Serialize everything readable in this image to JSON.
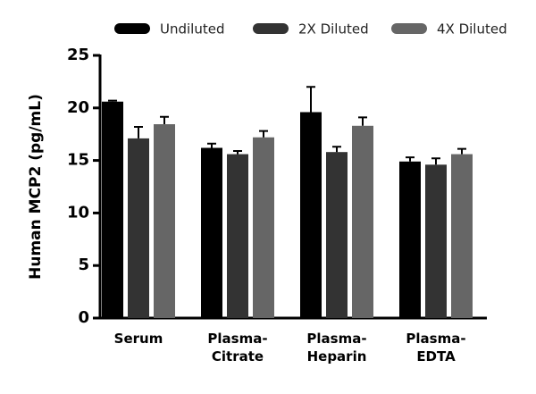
{
  "chart_data": {
    "type": "bar",
    "y_label": "Human MCP2 (pg/mL)",
    "categories": [
      "Serum",
      "Plasma-Citrate",
      "Plasma-Heparin",
      "Plasma-EDTA"
    ],
    "series": [
      {
        "name": "Undiluted",
        "color": "#000000",
        "values": [
          20.6,
          16.2,
          19.6,
          14.9
        ],
        "errors": [
          0.1,
          0.4,
          2.4,
          0.4
        ]
      },
      {
        "name": "2X Diluted",
        "color": "#333333",
        "values": [
          17.1,
          15.6,
          15.8,
          14.6
        ],
        "errors": [
          1.1,
          0.3,
          0.5,
          0.6
        ]
      },
      {
        "name": "4X Diluted",
        "color": "#666666",
        "values": [
          18.45,
          17.2,
          18.3,
          15.6
        ],
        "errors": [
          0.7,
          0.6,
          0.8,
          0.5
        ]
      }
    ],
    "ylim": [
      0,
      25
    ],
    "yticks": [
      0,
      5,
      10,
      15,
      20,
      25
    ],
    "legend": "top"
  }
}
